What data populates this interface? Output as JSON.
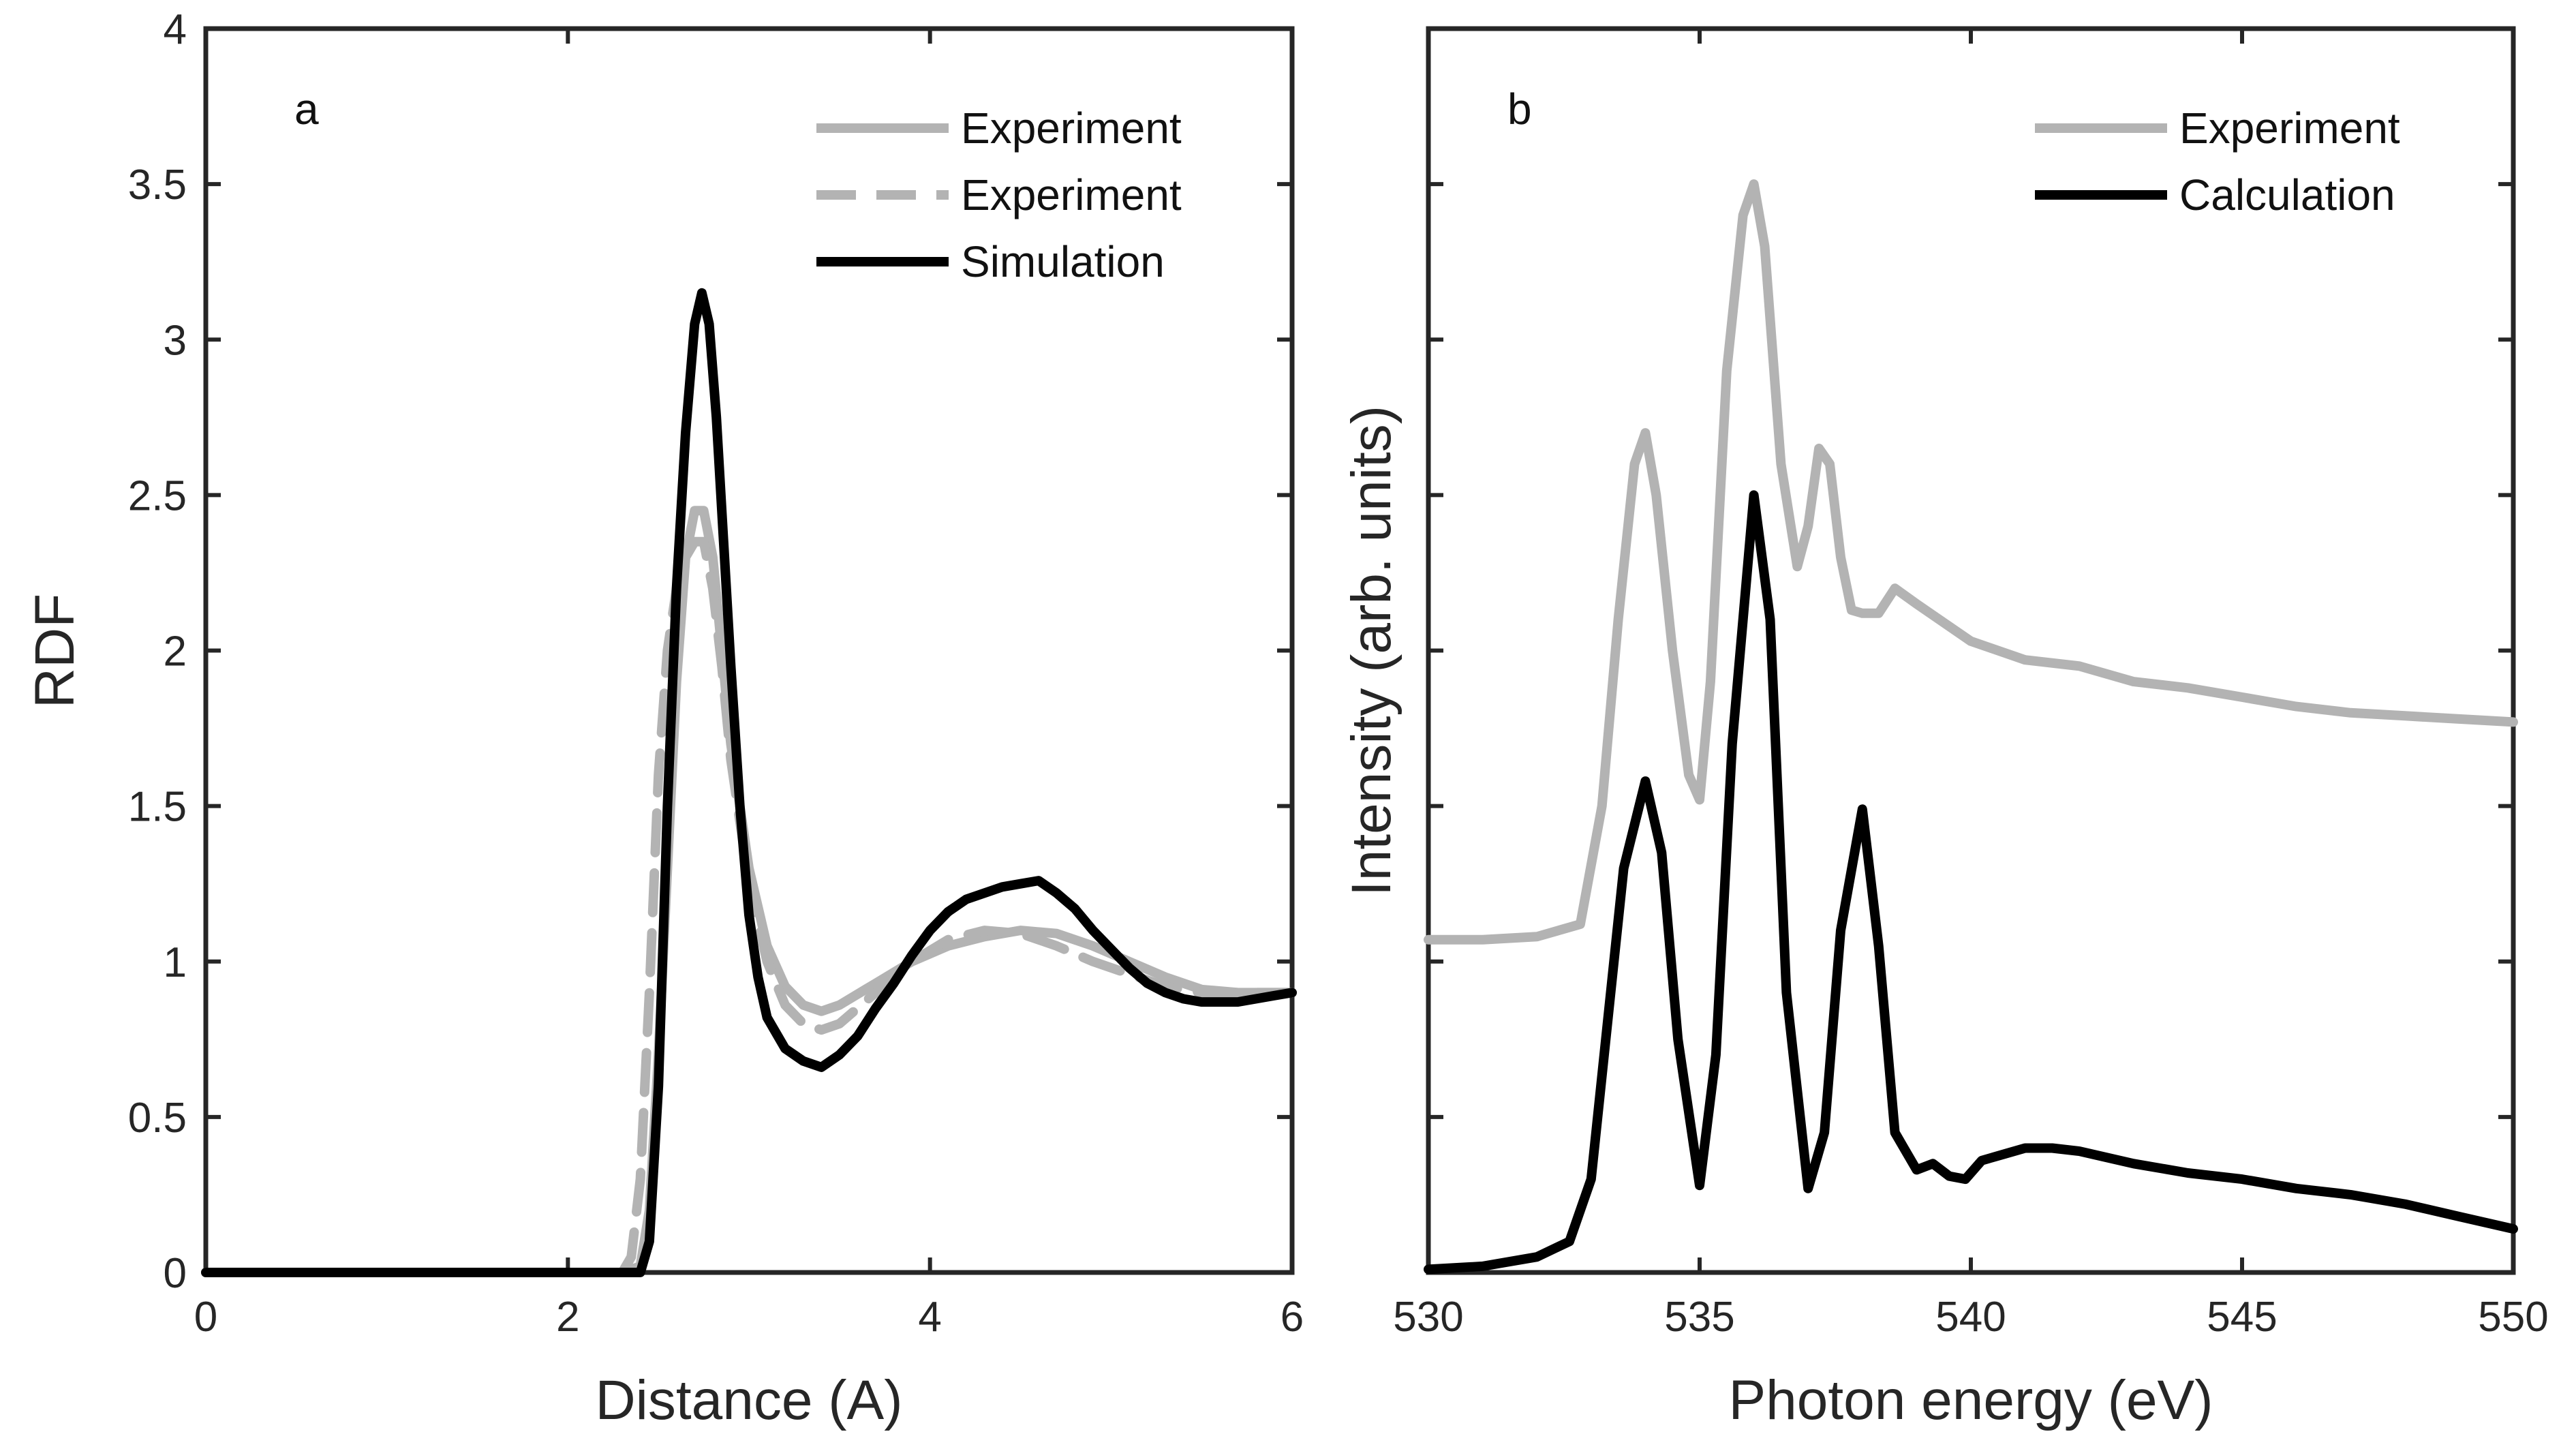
{
  "figure": {
    "panels": [
      "a",
      "b"
    ]
  },
  "colors": {
    "experiment": "#b3b3b3",
    "simulation": "#000000",
    "axes": "#262626"
  },
  "chart_data": [
    {
      "type": "line",
      "panel": "a",
      "xlabel": "Distance (A)",
      "ylabel": "RDF",
      "xlim": [
        0,
        6
      ],
      "ylim": [
        0,
        4
      ],
      "xticks": [
        "0",
        "2",
        "4",
        "6"
      ],
      "xtick_values": [
        0,
        2,
        4,
        6
      ],
      "yticks": [
        "0",
        "0.5",
        "1",
        "1.5",
        "2",
        "2.5",
        "3",
        "3.5",
        "4"
      ],
      "ytick_values": [
        0,
        0.5,
        1,
        1.5,
        2,
        2.5,
        3,
        3.5,
        4
      ],
      "legend_position": "top-right",
      "series": [
        {
          "name": "Experiment",
          "style": "solid",
          "color": "#b3b3b3",
          "x": [
            0,
            2.3,
            2.4,
            2.45,
            2.5,
            2.55,
            2.6,
            2.65,
            2.7,
            2.75,
            2.8,
            2.85,
            2.9,
            3.0,
            3.1,
            3.2,
            3.3,
            3.4,
            3.5,
            3.7,
            3.9,
            4.1,
            4.3,
            4.5,
            4.7,
            4.9,
            5.1,
            5.3,
            5.5,
            5.7,
            6.0
          ],
          "y": [
            0,
            0,
            0.02,
            0.2,
            0.7,
            1.3,
            1.9,
            2.3,
            2.45,
            2.45,
            2.3,
            2.0,
            1.7,
            1.3,
            1.05,
            0.92,
            0.86,
            0.84,
            0.86,
            0.93,
            1.0,
            1.05,
            1.08,
            1.1,
            1.09,
            1.05,
            1.0,
            0.95,
            0.91,
            0.9,
            0.9
          ]
        },
        {
          "name": "Experiment",
          "style": "dashed",
          "color": "#b3b3b3",
          "x": [
            0,
            2.3,
            2.35,
            2.4,
            2.45,
            2.5,
            2.55,
            2.6,
            2.65,
            2.7,
            2.75,
            2.8,
            2.85,
            2.9,
            3.0,
            3.1,
            3.2,
            3.3,
            3.4,
            3.5,
            3.7,
            3.9,
            4.1,
            4.3,
            4.5,
            4.7,
            4.9,
            5.1,
            5.3,
            5.5,
            5.7,
            6.0
          ],
          "y": [
            0,
            0,
            0.05,
            0.3,
            0.9,
            1.6,
            2.0,
            2.2,
            2.3,
            2.35,
            2.35,
            2.2,
            1.95,
            1.65,
            1.25,
            1.0,
            0.86,
            0.8,
            0.78,
            0.8,
            0.9,
            1.0,
            1.07,
            1.1,
            1.09,
            1.05,
            1.0,
            0.96,
            0.92,
            0.9,
            0.9,
            0.9
          ]
        },
        {
          "name": "Simulation",
          "style": "solid",
          "color": "#000000",
          "x": [
            0,
            2.4,
            2.45,
            2.5,
            2.55,
            2.6,
            2.65,
            2.7,
            2.74,
            2.78,
            2.82,
            2.86,
            2.9,
            2.95,
            3.0,
            3.05,
            3.1,
            3.2,
            3.3,
            3.4,
            3.5,
            3.6,
            3.7,
            3.8,
            3.9,
            4.0,
            4.1,
            4.2,
            4.3,
            4.4,
            4.5,
            4.6,
            4.7,
            4.8,
            4.9,
            5.0,
            5.1,
            5.2,
            5.3,
            5.4,
            5.5,
            5.6,
            5.7,
            5.8,
            5.9,
            6.0
          ],
          "y": [
            0,
            0,
            0.1,
            0.6,
            1.5,
            2.2,
            2.7,
            3.05,
            3.15,
            3.05,
            2.75,
            2.35,
            1.95,
            1.5,
            1.15,
            0.95,
            0.82,
            0.72,
            0.68,
            0.66,
            0.7,
            0.76,
            0.85,
            0.93,
            1.02,
            1.1,
            1.16,
            1.2,
            1.22,
            1.24,
            1.25,
            1.26,
            1.22,
            1.17,
            1.1,
            1.04,
            0.98,
            0.93,
            0.9,
            0.88,
            0.87,
            0.87,
            0.87,
            0.88,
            0.89,
            0.9
          ]
        }
      ]
    },
    {
      "type": "line",
      "panel": "b",
      "xlabel": "Photon energy (eV)",
      "ylabel": "Intensity (arb. units)",
      "xlim": [
        530,
        550
      ],
      "ylim": [
        0,
        4
      ],
      "xticks": [
        "530",
        "535",
        "540",
        "545",
        "550"
      ],
      "xtick_values": [
        530,
        535,
        540,
        545,
        550
      ],
      "yticks_labeled": false,
      "legend_position": "top-right",
      "series": [
        {
          "name": "Experiment",
          "style": "solid",
          "color": "#b3b3b3",
          "x": [
            530,
            531,
            532,
            532.8,
            533.2,
            533.5,
            533.8,
            534.0,
            534.2,
            534.5,
            534.8,
            535.0,
            535.2,
            535.5,
            535.8,
            536.0,
            536.2,
            536.5,
            536.8,
            537.0,
            537.2,
            537.4,
            537.6,
            537.8,
            538.0,
            538.3,
            538.6,
            539.0,
            540,
            541,
            542,
            543,
            544,
            545,
            546,
            547,
            548,
            549,
            550
          ],
          "y": [
            1.07,
            1.07,
            1.08,
            1.12,
            1.5,
            2.1,
            2.6,
            2.7,
            2.5,
            2.0,
            1.6,
            1.52,
            1.9,
            2.9,
            3.4,
            3.5,
            3.3,
            2.6,
            2.27,
            2.4,
            2.65,
            2.6,
            2.3,
            2.13,
            2.12,
            2.12,
            2.2,
            2.15,
            2.03,
            1.97,
            1.95,
            1.9,
            1.88,
            1.85,
            1.82,
            1.8,
            1.79,
            1.78,
            1.77
          ]
        },
        {
          "name": "Calculation",
          "style": "solid",
          "color": "#000000",
          "x": [
            530,
            531,
            532,
            532.6,
            533.0,
            533.3,
            533.6,
            534.0,
            534.3,
            534.6,
            535.0,
            535.3,
            535.6,
            536.0,
            536.3,
            536.6,
            537.0,
            537.3,
            537.6,
            538.0,
            538.3,
            538.6,
            539.0,
            539.3,
            539.6,
            539.9,
            540.2,
            540.6,
            541.0,
            541.5,
            542,
            543,
            544,
            545,
            546,
            547,
            548,
            549,
            550
          ],
          "y": [
            0.01,
            0.02,
            0.05,
            0.1,
            0.3,
            0.8,
            1.3,
            1.58,
            1.35,
            0.75,
            0.28,
            0.7,
            1.7,
            2.5,
            2.1,
            0.9,
            0.27,
            0.45,
            1.1,
            1.49,
            1.05,
            0.45,
            0.33,
            0.35,
            0.31,
            0.3,
            0.36,
            0.38,
            0.4,
            0.4,
            0.39,
            0.35,
            0.32,
            0.3,
            0.27,
            0.25,
            0.22,
            0.18,
            0.14
          ]
        }
      ]
    }
  ],
  "panel_a": {
    "letter": "a",
    "legend": [
      "Experiment",
      "Experiment",
      "Simulation"
    ]
  },
  "panel_b": {
    "letter": "b",
    "legend": [
      "Experiment",
      "Calculation"
    ]
  }
}
